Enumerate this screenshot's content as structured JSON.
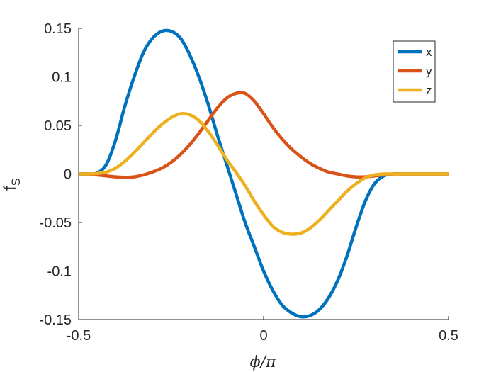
{
  "chart_data": {
    "type": "line",
    "xlabel": "ϕ/π",
    "ylabel": "f",
    "ylabel_sub": "S",
    "xlim": [
      -0.5,
      0.5
    ],
    "ylim": [
      -0.15,
      0.15
    ],
    "xticks": [
      -0.5,
      0,
      0.5
    ],
    "xtick_labels": [
      "-0.5",
      "0",
      "0.5"
    ],
    "yticks": [
      -0.15,
      -0.1,
      -0.05,
      0,
      0.05,
      0.1,
      0.15
    ],
    "ytick_labels": [
      "-0.15",
      "-0.1",
      "-0.05",
      "0",
      "0.05",
      "0.1",
      "0.15"
    ],
    "grid": false,
    "legend_position": "top-right",
    "x": [
      -0.5,
      -0.475,
      -0.45,
      -0.425,
      -0.4,
      -0.375,
      -0.35,
      -0.325,
      -0.3,
      -0.275,
      -0.25,
      -0.225,
      -0.2,
      -0.175,
      -0.15,
      -0.125,
      -0.1,
      -0.075,
      -0.05,
      -0.025,
      0,
      0.025,
      0.05,
      0.075,
      0.1,
      0.125,
      0.15,
      0.175,
      0.2,
      0.225,
      0.25,
      0.275,
      0.3,
      0.325,
      0.35,
      0.375,
      0.4,
      0.425,
      0.45,
      0.475,
      0.5
    ],
    "series": [
      {
        "name": "x",
        "color": "#0072BD",
        "values": [
          0,
          0,
          0.001,
          0.01,
          0.035,
          0.07,
          0.1,
          0.125,
          0.14,
          0.147,
          0.147,
          0.14,
          0.123,
          0.1,
          0.072,
          0.04,
          0.01,
          -0.02,
          -0.05,
          -0.075,
          -0.1,
          -0.12,
          -0.135,
          -0.143,
          -0.147,
          -0.146,
          -0.14,
          -0.128,
          -0.11,
          -0.085,
          -0.055,
          -0.028,
          -0.01,
          -0.002,
          0,
          0,
          0,
          0,
          0,
          0,
          0
        ]
      },
      {
        "name": "y",
        "color": "#D95319",
        "values": [
          0,
          0,
          -0.001,
          -0.002,
          -0.003,
          -0.0035,
          -0.003,
          -0.001,
          0.002,
          0.006,
          0.012,
          0.02,
          0.03,
          0.042,
          0.055,
          0.068,
          0.078,
          0.083,
          0.083,
          0.075,
          0.062,
          0.048,
          0.036,
          0.026,
          0.018,
          0.011,
          0.006,
          0.002,
          0,
          -0.002,
          -0.003,
          -0.003,
          -0.002,
          -0.001,
          0,
          0,
          0,
          0,
          0,
          0,
          0
        ]
      },
      {
        "name": "z",
        "color": "#EDB120",
        "values": [
          0,
          0,
          0.0005,
          0.002,
          0.006,
          0.013,
          0.022,
          0.032,
          0.042,
          0.051,
          0.058,
          0.062,
          0.061,
          0.055,
          0.044,
          0.03,
          0.015,
          0.002,
          -0.012,
          -0.028,
          -0.042,
          -0.054,
          -0.06,
          -0.062,
          -0.061,
          -0.056,
          -0.048,
          -0.038,
          -0.028,
          -0.018,
          -0.01,
          -0.004,
          -0.001,
          0,
          0,
          0,
          0,
          0,
          0,
          0,
          0
        ]
      }
    ]
  }
}
